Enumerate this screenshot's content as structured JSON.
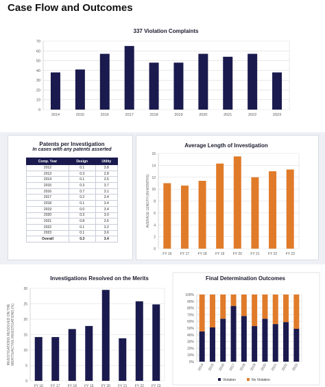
{
  "page_title": "Case Flow and Outcomes",
  "colors": {
    "navy": "#1a1a4e",
    "orange": "#e07b2a",
    "grid": "#d9d9d9"
  },
  "patents_table": {
    "title": "Patents per Investigation",
    "subtitle": "In cases with any patents asserted",
    "headers": [
      "Comp. Year",
      "Design",
      "Utility"
    ],
    "rows": [
      [
        "2012",
        "0.1",
        "3.8"
      ],
      [
        "2013",
        "0.3",
        "2.8"
      ],
      [
        "2014",
        "0.1",
        "3.5"
      ],
      [
        "2015",
        "0.3",
        "3.7"
      ],
      [
        "2016",
        "0.7",
        "3.1"
      ],
      [
        "2017",
        "0.2",
        "3.4"
      ],
      [
        "2018",
        "0.1",
        "3.4"
      ],
      [
        "2019",
        "0.0",
        "3.4"
      ],
      [
        "2020",
        "0.3",
        "3.0"
      ],
      [
        "2021",
        "0.8",
        "3.6"
      ],
      [
        "2022",
        "0.1",
        "3.2"
      ],
      [
        "2023",
        "0.1",
        "3.6"
      ]
    ],
    "total": [
      "Overall",
      "0.3",
      "3.4"
    ]
  },
  "chart_data": [
    {
      "id": "violation",
      "type": "bar",
      "title": "337 Violation Complaints",
      "categories": [
        "2014",
        "2015",
        "2016",
        "2017",
        "2018",
        "2019",
        "2020",
        "2021",
        "2022",
        "2023"
      ],
      "values": [
        38,
        41,
        57,
        65,
        48,
        48,
        57,
        54,
        57,
        38
      ],
      "ylim": [
        0,
        70
      ],
      "yticks": [
        0,
        10,
        20,
        30,
        40,
        50,
        60,
        70
      ],
      "grid": true
    },
    {
      "id": "length",
      "type": "bar",
      "title": "Average Length of Investigation",
      "ylabel": "AVERAGE LENGTH (IN MONTHS)",
      "categories": [
        "FY 16",
        "FY 17",
        "FY 18",
        "FY 19",
        "FY 20",
        "FY 21",
        "FY 22",
        "FY 23"
      ],
      "values": [
        11.0,
        10.6,
        11.4,
        14.3,
        15.5,
        12.0,
        13.0,
        13.3
      ],
      "ylim": [
        0,
        16
      ],
      "yticks": [
        0,
        2,
        4,
        6,
        8,
        10,
        12,
        14,
        16
      ],
      "grid": true
    },
    {
      "id": "merits",
      "type": "bar",
      "title": "Investigations Resolved on the Merits",
      "ylabel": "INVESTIGATIONS RESOLVED ON THE MERITS/ACTIVE INVESTIGATIONS (%)",
      "categories": [
        "FY 16",
        "FY 17",
        "FY 18",
        "FY 19",
        "FY 20",
        "FY 21",
        "FY 22",
        "FY 23"
      ],
      "values": [
        14.2,
        14.2,
        16.8,
        17.8,
        29.5,
        13.8,
        25.8,
        24.8
      ],
      "ylim": [
        0,
        30
      ],
      "yticks": [
        0,
        5,
        10,
        15,
        20,
        25,
        30
      ],
      "grid": true
    },
    {
      "id": "determination",
      "type": "bar",
      "stacked": true,
      "title": "Final Determination Outcomes",
      "categories": [
        "2014",
        "2015",
        "2016",
        "2017",
        "2018",
        "2019",
        "2020",
        "2021",
        "2022",
        "2023"
      ],
      "series": [
        {
          "name": "Violation",
          "values": [
            45,
            51,
            64,
            83,
            68,
            53,
            64,
            56,
            59,
            49
          ]
        },
        {
          "name": "No Violation",
          "values": [
            55,
            49,
            36,
            17,
            32,
            47,
            36,
            44,
            41,
            51
          ]
        }
      ],
      "ylim": [
        0,
        100
      ],
      "yticks": [
        "0%",
        "10%",
        "20%",
        "30%",
        "40%",
        "50%",
        "60%",
        "70%",
        "80%",
        "90%",
        "100%"
      ],
      "legend": "bottom",
      "grid": true
    }
  ]
}
